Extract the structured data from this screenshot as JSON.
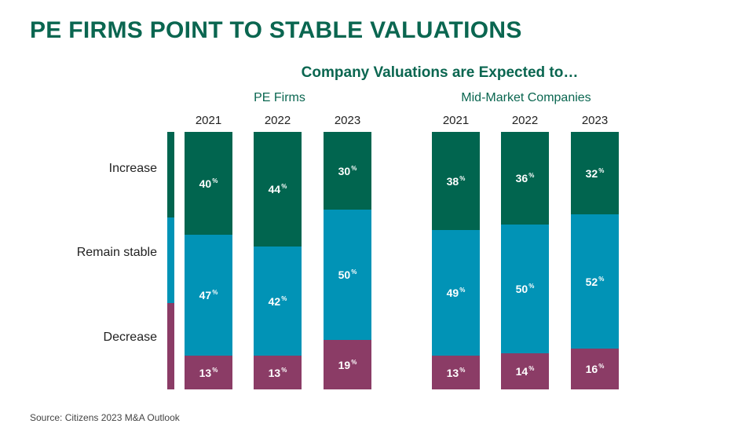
{
  "title": "PE FIRMS POINT TO STABLE VALUATIONS",
  "source": "Source: Citizens 2023 M&A Outlook",
  "colors": {
    "increase": "#01654f",
    "stable": "#0193b6",
    "decrease": "#8b3c66",
    "title": "#0a6650"
  },
  "chart_data": {
    "type": "bar",
    "stacked": true,
    "orientation": "vertical",
    "title": "Company Valuations are Expected to…",
    "legend": [
      "Increase",
      "Remain stable",
      "Decrease"
    ],
    "unit": "%",
    "groups": [
      {
        "name": "PE Firms",
        "categories": [
          "2021",
          "2022",
          "2023"
        ],
        "series": [
          {
            "name": "Increase",
            "values": [
              40,
              44,
              30
            ]
          },
          {
            "name": "Remain stable",
            "values": [
              47,
              42,
              50
            ]
          },
          {
            "name": "Decrease",
            "values": [
              13,
              13,
              19
            ]
          }
        ]
      },
      {
        "name": "Mid-Market Companies",
        "categories": [
          "2021",
          "2022",
          "2023"
        ],
        "series": [
          {
            "name": "Increase",
            "values": [
              38,
              36,
              32
            ]
          },
          {
            "name": "Remain stable",
            "values": [
              49,
              50,
              52
            ]
          },
          {
            "name": "Decrease",
            "values": [
              13,
              14,
              16
            ]
          }
        ]
      }
    ]
  }
}
